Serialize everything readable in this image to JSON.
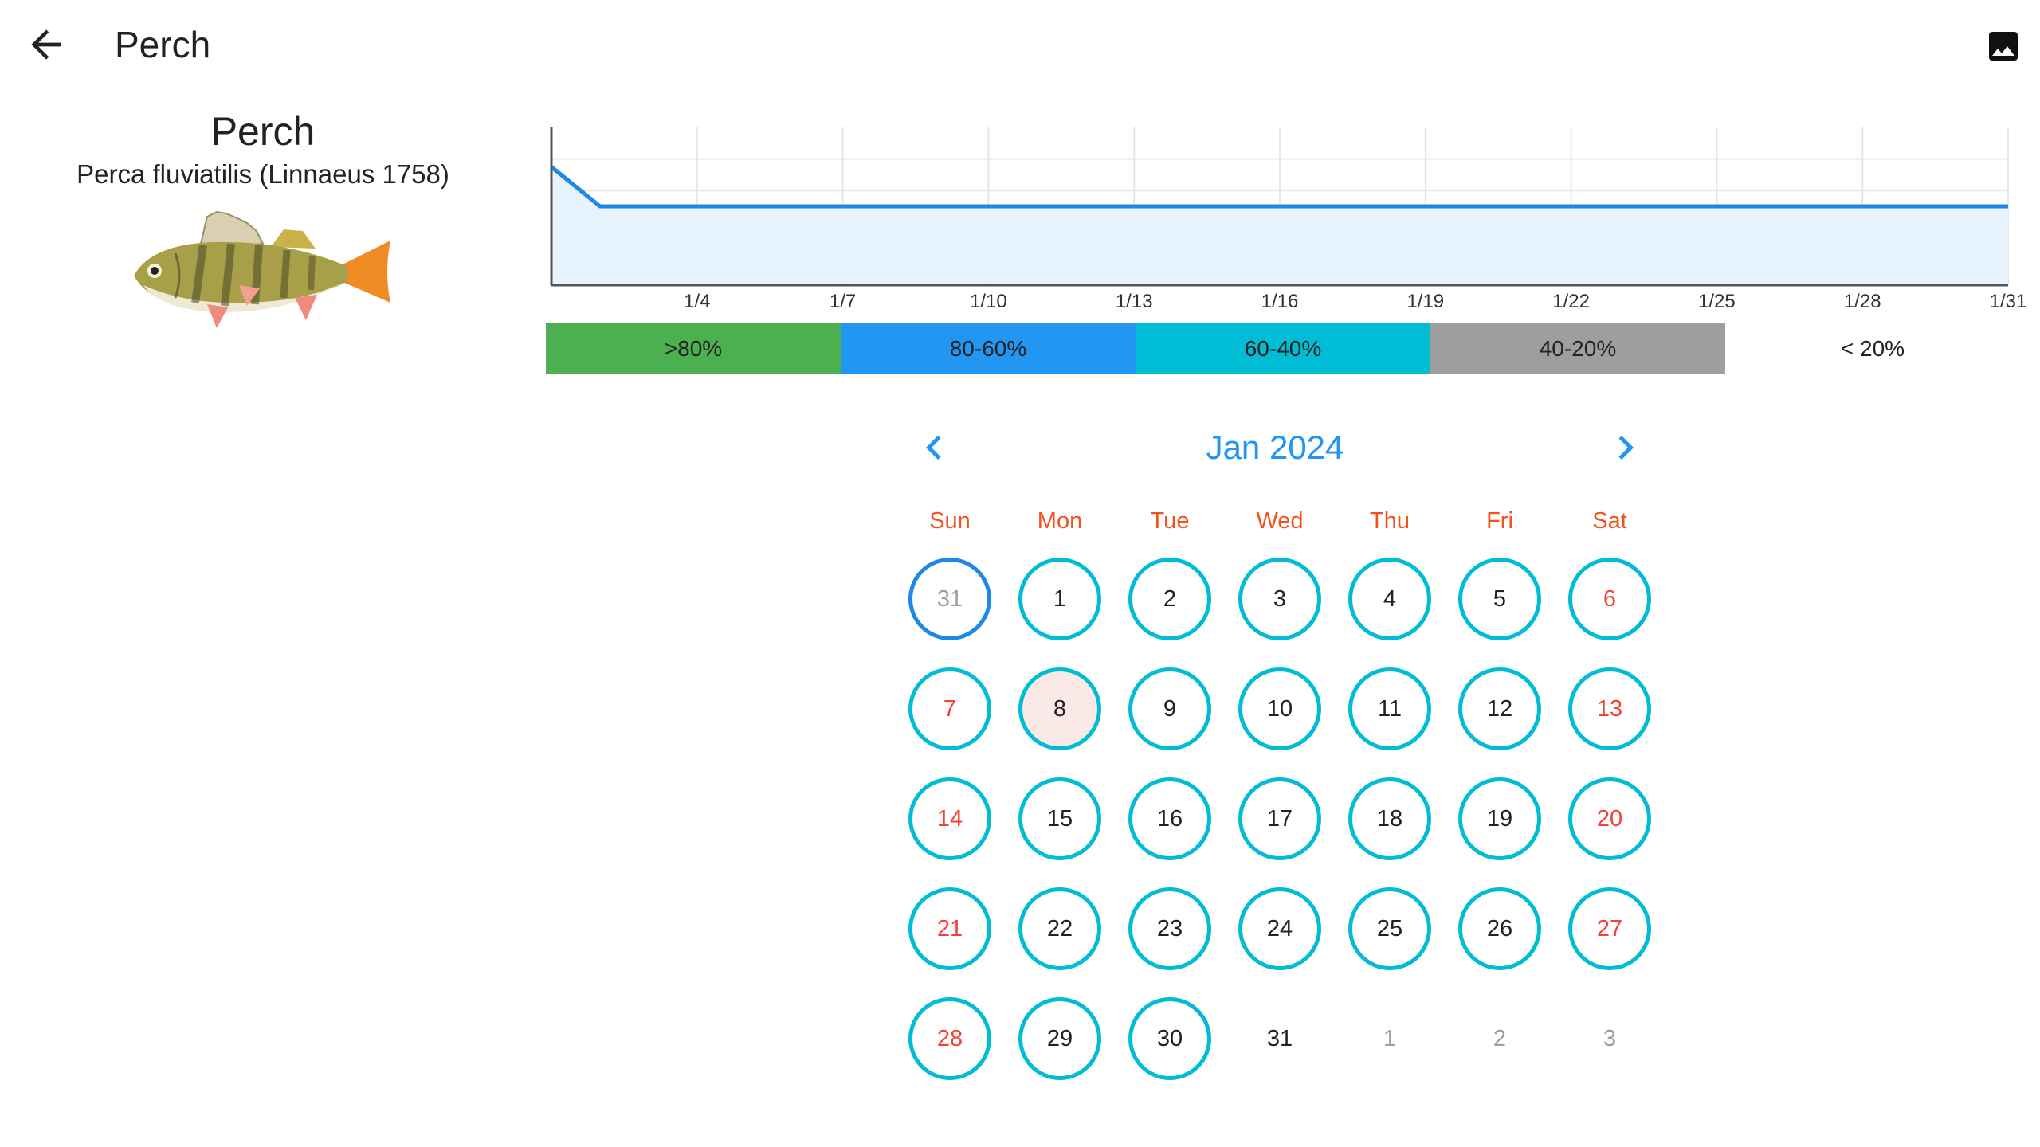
{
  "header": {
    "title": "Perch",
    "back_icon": "arrow-back-icon",
    "gallery_icon": "image-icon"
  },
  "fish": {
    "common_name": "Perch",
    "scientific_name": "Perca fluviatilis (Linnaeus 1758)"
  },
  "chart_data": {
    "type": "area",
    "x_tick_labels": [
      "1/4",
      "1/7",
      "1/10",
      "1/13",
      "1/16",
      "1/19",
      "1/22",
      "1/25",
      "1/28",
      "1/31"
    ],
    "x": [
      1,
      2,
      31
    ],
    "values": [
      75,
      50,
      50
    ],
    "xlim": [
      1,
      31
    ],
    "ylim": [
      0,
      100
    ],
    "grid": true,
    "line_color": "#1e88e5",
    "fill_color": "#e3f2fd"
  },
  "legend": [
    {
      "label": ">80%",
      "color": "#4caf50"
    },
    {
      "label": "80-60%",
      "color": "#2196f3"
    },
    {
      "label": "60-40%",
      "color": "#00bcd4"
    },
    {
      "label": "40-20%",
      "color": "#9e9e9e"
    },
    {
      "label": "< 20%",
      "color": "#ffffff"
    }
  ],
  "calendar": {
    "month_label": "Jan 2024",
    "prev_icon": "chevron-left-icon",
    "next_icon": "chevron-right-icon",
    "weekdays": [
      "Sun",
      "Mon",
      "Tue",
      "Wed",
      "Thu",
      "Fri",
      "Sat"
    ],
    "accent_color": "#2196f3",
    "weekend_color": "#f44336",
    "ring_color": "#00bcd4",
    "weeks": [
      [
        {
          "d": "31",
          "out": true,
          "ring": "today"
        },
        {
          "d": "1",
          "ring": "cyan"
        },
        {
          "d": "2",
          "ring": "cyan"
        },
        {
          "d": "3",
          "ring": "cyan"
        },
        {
          "d": "4",
          "ring": "cyan"
        },
        {
          "d": "5",
          "ring": "cyan"
        },
        {
          "d": "6",
          "ring": "cyan"
        }
      ],
      [
        {
          "d": "7",
          "ring": "cyan"
        },
        {
          "d": "8",
          "ring": "cyan",
          "selected": true
        },
        {
          "d": "9",
          "ring": "cyan"
        },
        {
          "d": "10",
          "ring": "cyan"
        },
        {
          "d": "11",
          "ring": "cyan"
        },
        {
          "d": "12",
          "ring": "cyan"
        },
        {
          "d": "13",
          "ring": "cyan"
        }
      ],
      [
        {
          "d": "14",
          "ring": "cyan"
        },
        {
          "d": "15",
          "ring": "cyan"
        },
        {
          "d": "16",
          "ring": "cyan"
        },
        {
          "d": "17",
          "ring": "cyan"
        },
        {
          "d": "18",
          "ring": "cyan"
        },
        {
          "d": "19",
          "ring": "cyan"
        },
        {
          "d": "20",
          "ring": "cyan"
        }
      ],
      [
        {
          "d": "21",
          "ring": "cyan"
        },
        {
          "d": "22",
          "ring": "cyan"
        },
        {
          "d": "23",
          "ring": "cyan"
        },
        {
          "d": "24",
          "ring": "cyan"
        },
        {
          "d": "25",
          "ring": "cyan"
        },
        {
          "d": "26",
          "ring": "cyan"
        },
        {
          "d": "27",
          "ring": "cyan"
        }
      ],
      [
        {
          "d": "28",
          "ring": "cyan"
        },
        {
          "d": "29",
          "ring": "cyan"
        },
        {
          "d": "30",
          "ring": "cyan"
        },
        {
          "d": "31"
        },
        {
          "d": "1",
          "out": true
        },
        {
          "d": "2",
          "out": true
        },
        {
          "d": "3",
          "out": true
        }
      ]
    ]
  }
}
